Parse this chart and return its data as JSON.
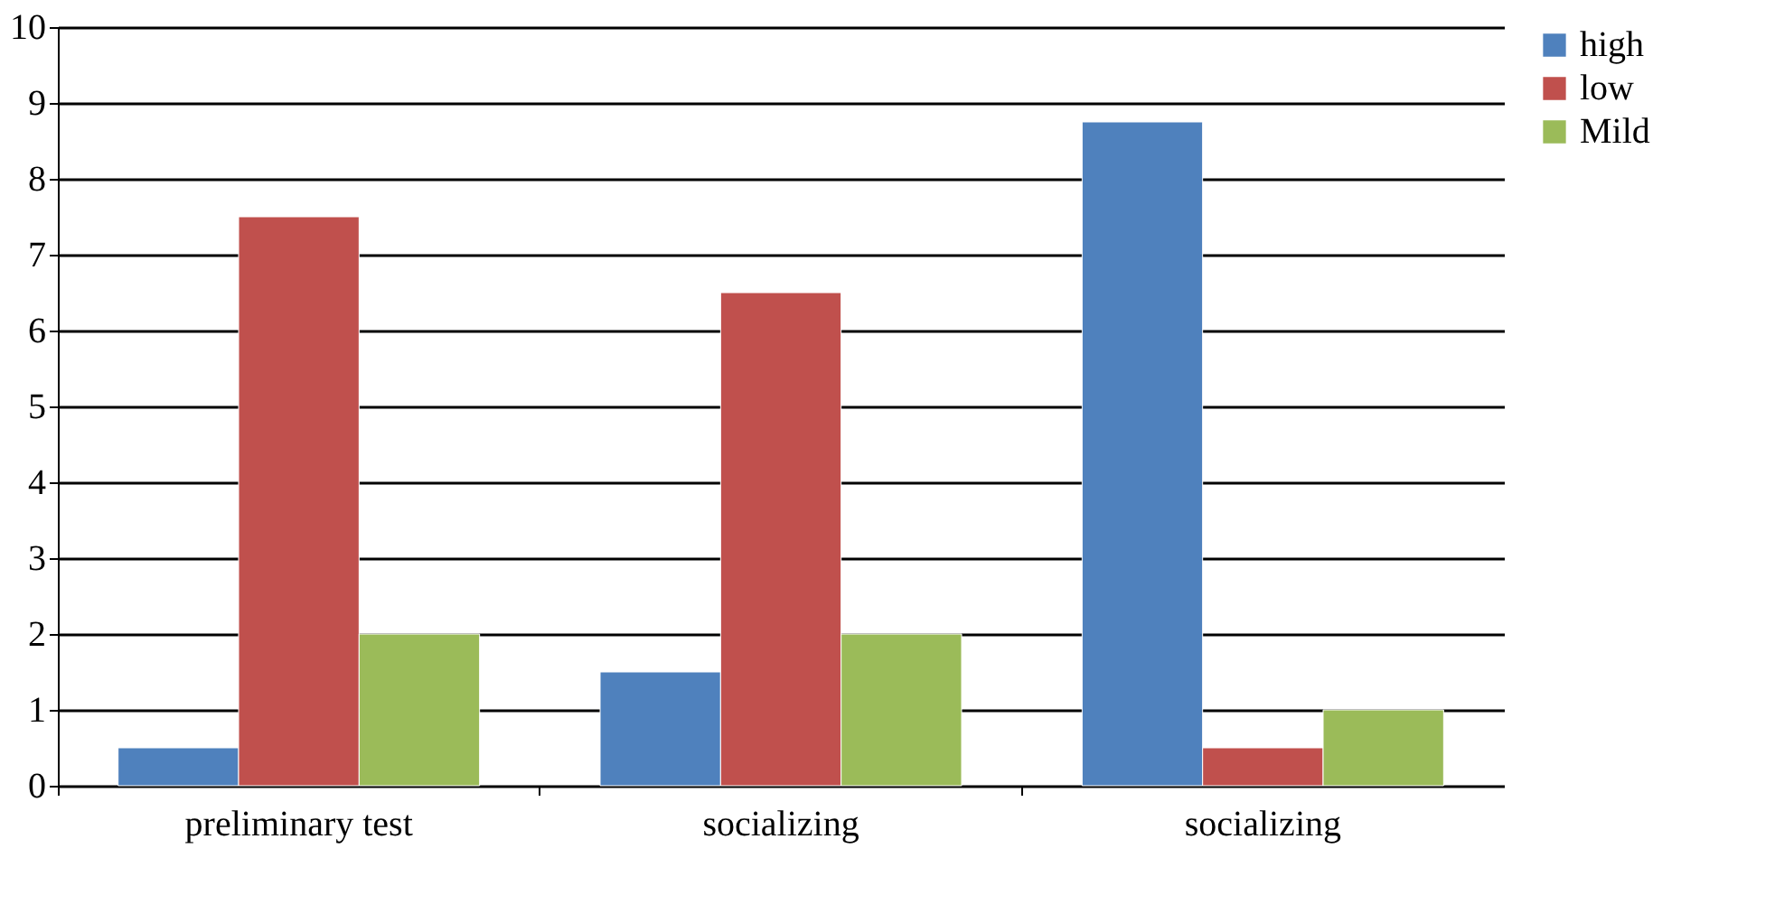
{
  "chart_data": {
    "type": "bar",
    "categories": [
      "preliminary test",
      "socializing",
      "socializing"
    ],
    "series": [
      {
        "name": "high",
        "color": "#4f81bd",
        "values": [
          0.5,
          1.5,
          8.75
        ]
      },
      {
        "name": "low",
        "color": "#c0504d",
        "values": [
          7.5,
          6.5,
          0.5
        ]
      },
      {
        "name": "Mild",
        "color": "#9bbb59",
        "values": [
          2,
          2,
          1
        ]
      }
    ],
    "ylim": [
      0,
      10
    ],
    "yticks": [
      0,
      1,
      2,
      3,
      4,
      5,
      6,
      7,
      8,
      9,
      10
    ],
    "grid": "y",
    "legend": "right"
  }
}
